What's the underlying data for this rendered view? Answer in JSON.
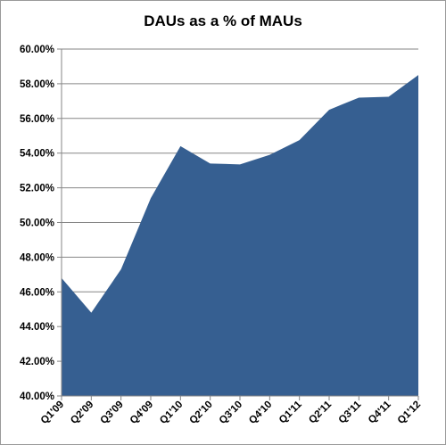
{
  "chart_data": {
    "type": "area",
    "title": "DAUs as a % of MAUs",
    "xlabel": "",
    "ylabel": "",
    "categories": [
      "Q1'09",
      "Q2'09",
      "Q3'09",
      "Q4'09",
      "Q1'10",
      "Q2'10",
      "Q3'10",
      "Q4'10",
      "Q1'11",
      "Q2'11",
      "Q3'11",
      "Q4'11",
      "Q1'12"
    ],
    "values": [
      46.8,
      44.8,
      47.3,
      51.4,
      54.4,
      53.4,
      53.35,
      53.9,
      54.75,
      56.5,
      57.2,
      57.25,
      58.5
    ],
    "ylim": [
      40,
      60
    ],
    "yticks": [
      "40.00%",
      "42.00%",
      "44.00%",
      "46.00%",
      "48.00%",
      "50.00%",
      "52.00%",
      "54.00%",
      "56.00%",
      "58.00%",
      "60.00%"
    ],
    "grid": true,
    "legend": "none",
    "colors": {
      "fill": "#365f91",
      "grid": "#868686",
      "axis": "#868686"
    }
  }
}
